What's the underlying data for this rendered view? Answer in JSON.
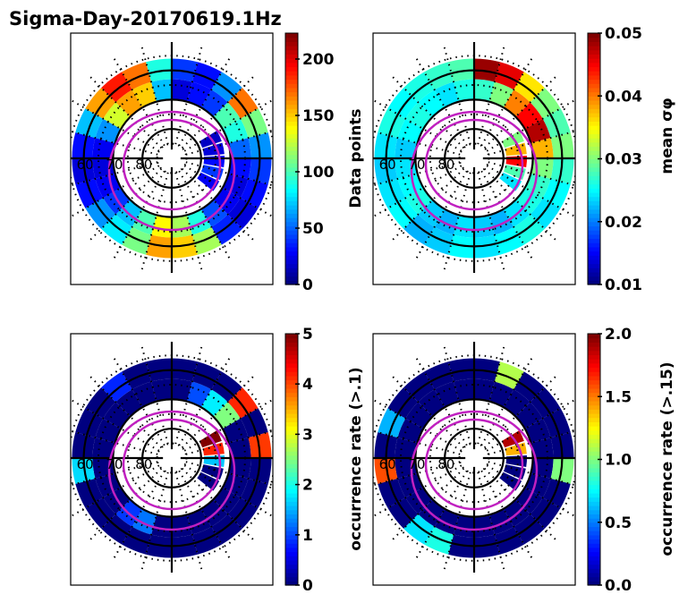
{
  "figure": {
    "title": "Sigma-Day-20170619.1Hz"
  },
  "chart_data": [
    {
      "type": "heatmap",
      "projection": "polar (magnetic latitude vs MLT)",
      "panel": "top-left",
      "title": "",
      "colorbar_label": "Data points",
      "colormap": "jet",
      "vmin": 0,
      "vmax": 223,
      "colorbar_ticks": [
        "0",
        "50",
        "100",
        "150",
        "200"
      ],
      "colorbar_tick_values": [
        0,
        50,
        100,
        150,
        200
      ],
      "lat_labels": [
        "60",
        "70",
        "80"
      ],
      "lat_label_values": [
        60,
        70,
        80
      ],
      "solid_circles_lat": [
        60,
        70,
        80
      ],
      "dotted_circles_lat": [
        55,
        65,
        75,
        85
      ],
      "oval_boundaries": "two magenta circles (auroral oval)",
      "ring_lat_range": [
        56,
        70
      ],
      "sector_values_outer": [
        40,
        30,
        60,
        170,
        110,
        60,
        40,
        30,
        20,
        35,
        120,
        150,
        160,
        110,
        80,
        60,
        30,
        20,
        30,
        70,
        160,
        190,
        170,
        90
      ],
      "sector_values_inner": [
        20,
        30,
        40,
        100,
        90,
        50,
        30,
        20,
        25,
        45,
        90,
        120,
        140,
        100,
        70,
        40,
        25,
        20,
        25,
        60,
        130,
        160,
        150,
        70
      ],
      "dawn_partial_values": [
        15,
        20,
        30,
        40,
        25
      ]
    },
    {
      "type": "heatmap",
      "projection": "polar (magnetic latitude vs MLT)",
      "panel": "top-right",
      "colorbar_label": "mean σφ",
      "colormap": "jet",
      "vmin": 0.01,
      "vmax": 0.05,
      "colorbar_ticks": [
        "0.01",
        "0.02",
        "0.03",
        "0.04",
        "0.05"
      ],
      "colorbar_tick_values": [
        0.01,
        0.02,
        0.03,
        0.04,
        0.05
      ],
      "lat_labels": [
        "60",
        "70",
        "80"
      ],
      "lat_label_values": [
        60,
        70,
        80
      ],
      "sector_values_outer": [
        0.049,
        0.046,
        0.036,
        0.03,
        0.028,
        0.03,
        0.027,
        0.025,
        0.024,
        0.026,
        0.025,
        0.024,
        0.025,
        0.023,
        0.022,
        0.025,
        0.024,
        0.023,
        0.024,
        0.026,
        0.025,
        0.026,
        0.027,
        0.028
      ],
      "sector_values_inner": [
        0.027,
        0.03,
        0.04,
        0.045,
        0.048,
        0.038,
        0.03,
        0.027,
        0.026,
        0.024,
        0.022,
        0.023,
        0.024,
        0.022,
        0.023,
        0.026,
        0.025,
        0.024,
        0.023,
        0.025,
        0.026,
        0.025,
        0.024,
        0.026
      ],
      "dawn_partial_values": [
        0.03,
        0.038,
        0.045,
        0.028,
        0.024
      ]
    },
    {
      "type": "heatmap",
      "projection": "polar (magnetic latitude vs MLT)",
      "panel": "bottom-left",
      "colorbar_label": "occurrence rate (>.1)",
      "colormap": "jet",
      "vmin": 0,
      "vmax": 5,
      "colorbar_ticks": [
        "0",
        "1",
        "2",
        "3",
        "4",
        "5"
      ],
      "colorbar_tick_values": [
        0,
        1,
        2,
        3,
        4,
        5
      ],
      "lat_labels": [
        "60",
        "70",
        "80"
      ],
      "lat_label_values": [
        60,
        70,
        80
      ],
      "sector_values_outer": [
        0,
        0,
        0,
        4.2,
        0,
        4.1,
        0,
        0,
        0,
        0,
        0,
        0,
        0,
        0,
        0,
        0,
        0,
        1.7,
        0,
        0,
        0,
        0.8,
        0,
        0
      ],
      "sector_values_inner": [
        0,
        1.0,
        1.8,
        2.5,
        0,
        0,
        0,
        0,
        0,
        0,
        0,
        0,
        0,
        1.2,
        0.9,
        0,
        0,
        0,
        0,
        0,
        0,
        0,
        0,
        0
      ],
      "dawn_partial_values": [
        5.0,
        4.2,
        1.6,
        0,
        0
      ]
    },
    {
      "type": "heatmap",
      "projection": "polar (magnetic latitude vs MLT)",
      "panel": "bottom-right",
      "colorbar_label": "occurrence rate (>.15)",
      "colormap": "jet",
      "vmin": 0,
      "vmax": 2,
      "colorbar_ticks": [
        "0.0",
        "0.5",
        "1.0",
        "1.5",
        "2.0"
      ],
      "colorbar_tick_values": [
        0,
        0.5,
        1.0,
        1.5,
        2.0
      ],
      "lat_labels": [
        "60",
        "70",
        "80"
      ],
      "lat_label_values": [
        60,
        70,
        80
      ],
      "sector_values_outer": [
        0,
        1.1,
        0,
        0,
        0,
        0,
        1.0,
        0,
        0,
        0,
        0,
        0,
        0,
        0.8,
        0.7,
        0,
        0,
        1.6,
        0,
        0.6,
        0,
        0,
        0,
        0
      ],
      "sector_values_inner": [
        0,
        0,
        0,
        0,
        0,
        0,
        0,
        0,
        0,
        0,
        0,
        0,
        0,
        0,
        0,
        0,
        0,
        0,
        0,
        0,
        0,
        0,
        0,
        0
      ],
      "dawn_partial_values": [
        1.9,
        1.4,
        0,
        0,
        0
      ]
    }
  ]
}
